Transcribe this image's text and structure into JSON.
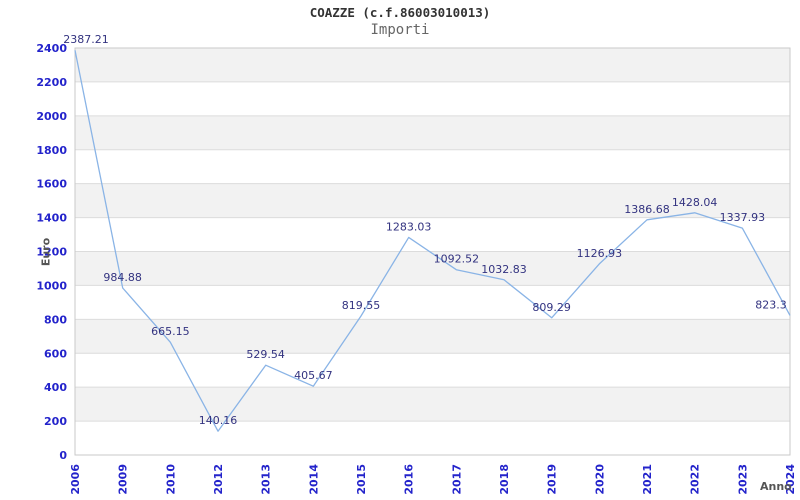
{
  "header": {
    "title": "COAZZE (c.f.86003010013)",
    "subtitle": "Importi"
  },
  "chart_data": {
    "type": "line",
    "title": "COAZZE (c.f.86003010013)",
    "subtitle": "Importi",
    "xlabel": "Anno",
    "ylabel": "Euro",
    "x": [
      "2006",
      "2009",
      "2010",
      "2012",
      "2013",
      "2014",
      "2015",
      "2016",
      "2017",
      "2018",
      "2019",
      "2020",
      "2021",
      "2022",
      "2023",
      "2024"
    ],
    "series": [
      {
        "name": "Importi",
        "values": [
          2387.21,
          984.88,
          665.15,
          140.16,
          529.54,
          405.67,
          819.55,
          1283.03,
          1092.52,
          1032.83,
          809.29,
          1126.93,
          1386.68,
          1428.04,
          1337.93,
          823.3
        ],
        "data_labels": [
          "2387.21",
          "984.88",
          "665.15",
          "140.16",
          "529.54",
          "405.67",
          "819.55",
          "1283.03",
          "1092.52",
          "1032.83",
          "809.29",
          "1126.93",
          "1386.68",
          "1428.04",
          "1337.93",
          "823.3"
        ]
      }
    ],
    "ylim": [
      0,
      2400
    ],
    "ytick_step": 200,
    "grid": true,
    "legend_position": "none",
    "plot_bands_alternating": true,
    "colors": {
      "line": "#8ab4e6",
      "axis_tick_label": "#2323cb",
      "data_label": "#333380",
      "axis_title": "#555555",
      "band": "#f2f2f2",
      "gridline": "#dcdcdc",
      "plot_border": "#c9c9c9",
      "title": "#333333",
      "subtitle": "#666666",
      "background": "#ffffff"
    }
  }
}
